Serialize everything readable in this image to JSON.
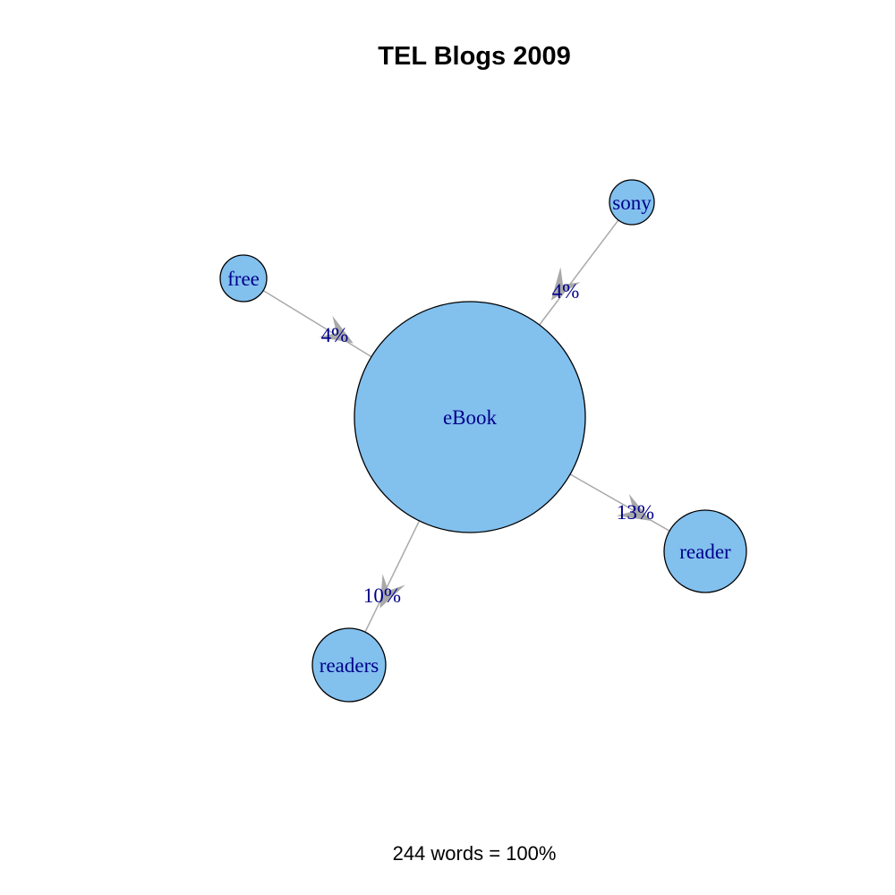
{
  "title": "TEL Blogs 2009",
  "footer": "244 words = 100%",
  "colors": {
    "node_fill": "#82C0EE",
    "node_stroke": "#000000",
    "label": "#00008B",
    "edge": "#A9A9A9"
  },
  "nodes": [
    {
      "id": "ebook",
      "label": "eBook"
    },
    {
      "id": "sony",
      "label": "sony"
    },
    {
      "id": "free",
      "label": "free"
    },
    {
      "id": "reader",
      "label": "reader"
    },
    {
      "id": "readers",
      "label": "readers"
    }
  ],
  "edges": [
    {
      "from": "sony",
      "to": "ebook",
      "label": "4%"
    },
    {
      "from": "free",
      "to": "ebook",
      "label": "4%"
    },
    {
      "from": "ebook",
      "to": "reader",
      "label": "13%"
    },
    {
      "from": "ebook",
      "to": "readers",
      "label": "10%"
    }
  ]
}
